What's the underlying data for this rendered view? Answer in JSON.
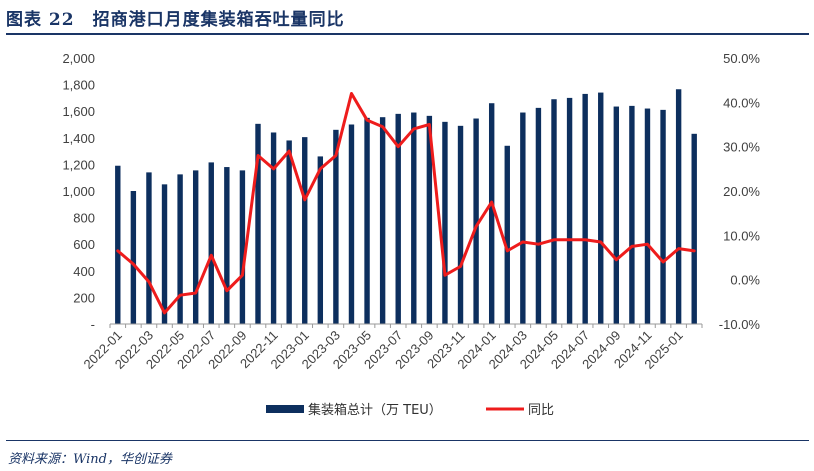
{
  "figure": {
    "title": "图表 22　招商港口月度集装箱吞吐量同比",
    "source": "资料来源：Wind，华创证券"
  },
  "chart_data": {
    "type": "bar+line",
    "categories": [
      "2022-01",
      "2022-02",
      "2022-03",
      "2022-04",
      "2022-05",
      "2022-06",
      "2022-07",
      "2022-08",
      "2022-09",
      "2022-10",
      "2022-11",
      "2022-12",
      "2023-01",
      "2023-02",
      "2023-03",
      "2023-04",
      "2023-05",
      "2023-06",
      "2023-07",
      "2023-08",
      "2023-09",
      "2023-10",
      "2023-11",
      "2023-12",
      "2024-01",
      "2024-02",
      "2024-03",
      "2024-04",
      "2024-05",
      "2024-06",
      "2024-07",
      "2024-08",
      "2024-09",
      "2024-10",
      "2024-11",
      "2024-12",
      "2025-01",
      "2025-02"
    ],
    "x_tick_labels": [
      "2022-01",
      "2022-03",
      "2022-05",
      "2022-07",
      "2022-09",
      "2022-11",
      "2023-01",
      "2023-03",
      "2023-05",
      "2023-07",
      "2023-09",
      "2023-11",
      "2024-01",
      "2024-03",
      "2024-05",
      "2024-07",
      "2024-09",
      "2024-11",
      "2025-01"
    ],
    "series": [
      {
        "name": "集装箱总计（万TEU）",
        "type": "bar",
        "axis": "left",
        "color": "#0d2f5e",
        "values": [
          1190,
          1000,
          1140,
          1050,
          1125,
          1155,
          1215,
          1180,
          1155,
          1505,
          1440,
          1380,
          1405,
          1260,
          1460,
          1500,
          1550,
          1555,
          1580,
          1590,
          1565,
          1520,
          1490,
          1545,
          1660,
          1340,
          1590,
          1625,
          1690,
          1700,
          1730,
          1740,
          1635,
          1640,
          1620,
          1610,
          1765,
          1430
        ]
      },
      {
        "name": "同比",
        "type": "line",
        "axis": "right",
        "color": "#ee1c1c",
        "values": [
          6.5,
          3.5,
          -0.5,
          -7.5,
          -3.5,
          -3.0,
          5.5,
          -2.5,
          1.0,
          28.0,
          25.0,
          29.0,
          18.0,
          25.0,
          28.0,
          42.0,
          36.0,
          34.5,
          30.0,
          34.0,
          35.0,
          1.0,
          3.0,
          12.0,
          17.5,
          6.5,
          8.5,
          8.0,
          9.0,
          9.0,
          9.0,
          8.5,
          4.5,
          7.5,
          8.0,
          4.0,
          7.0,
          6.5
        ]
      }
    ],
    "y_left": {
      "min": 0,
      "max": 2000,
      "step": 200,
      "tick_labels": [
        "-",
        "200",
        "400",
        "600",
        "800",
        "1,000",
        "1,200",
        "1,400",
        "1,600",
        "1,800",
        "2,000"
      ]
    },
    "y_right": {
      "min": -10,
      "max": 50,
      "step": 10,
      "tick_labels": [
        "-10.0%",
        "0.0%",
        "10.0%",
        "20.0%",
        "30.0%",
        "40.0%",
        "50.0%"
      ]
    },
    "legend": {
      "placement": "bottom-center",
      "items": [
        {
          "label": "集装箱总计（万 TEU）",
          "kind": "bar",
          "color": "#0d2f5e"
        },
        {
          "label": "同比",
          "kind": "line",
          "color": "#ee1c1c"
        }
      ]
    },
    "grid": false
  }
}
